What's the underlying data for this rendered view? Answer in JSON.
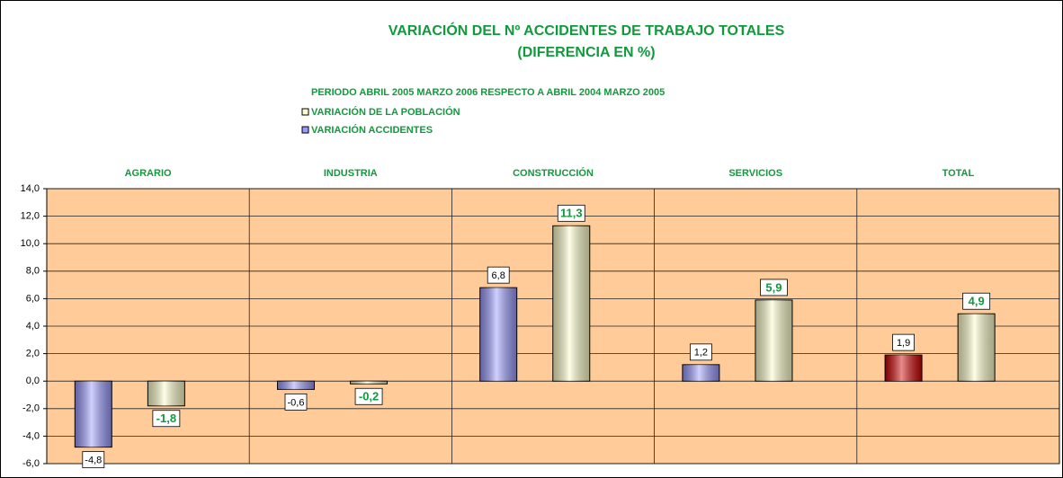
{
  "chart_data": {
    "type": "bar",
    "title": [
      "VARIACIÓN DEL Nº ACCIDENTES DE TRABAJO TOTALES",
      "(DIFERENCIA EN %)"
    ],
    "subtitle": "PERIODO ABRIL 2005 MARZO 2006  RESPECTO A ABRIL 2004 MARZO 2005",
    "categories": [
      "AGRARIO",
      "INDUSTRIA",
      "CONSTRUCCIÓN",
      "SERVICIOS",
      "TOTAL"
    ],
    "series": [
      {
        "name": "VARIACIÓN DE LA POBLACIÓN",
        "color": "#ffffcc",
        "values": [
          -1.8,
          -0.2,
          11.3,
          5.9,
          4.9
        ],
        "value_labels": [
          "-1,8",
          "-0,2",
          "11,3",
          "5,9",
          "4,9"
        ]
      },
      {
        "name": "VARIACIÓN ACCIDENTES",
        "color": "#9999ff",
        "colors": [
          "#9999ff",
          "#9999ff",
          "#9999ff",
          "#9999ff",
          "#cc0000"
        ],
        "values": [
          -4.8,
          -0.6,
          6.8,
          1.2,
          1.9
        ],
        "value_labels": [
          "-4,8",
          "-0,6",
          "6,8",
          "1,2",
          "1,9"
        ]
      }
    ],
    "ylim": [
      -6,
      14
    ],
    "yticks": [
      {
        "value": -6,
        "label": "-6,0"
      },
      {
        "value": -4,
        "label": "-4,0"
      },
      {
        "value": -2,
        "label": "-2,0"
      },
      {
        "value": 0,
        "label": "0,0"
      },
      {
        "value": 2,
        "label": "2,0"
      },
      {
        "value": 4,
        "label": "4,0"
      },
      {
        "value": 6,
        "label": "6,0"
      },
      {
        "value": 8,
        "label": "8,0"
      },
      {
        "value": 10,
        "label": "10,0"
      },
      {
        "value": 12,
        "label": "12,0"
      },
      {
        "value": 14,
        "label": "14,0"
      }
    ],
    "grid": true,
    "plot_background": "#ffcc99"
  }
}
